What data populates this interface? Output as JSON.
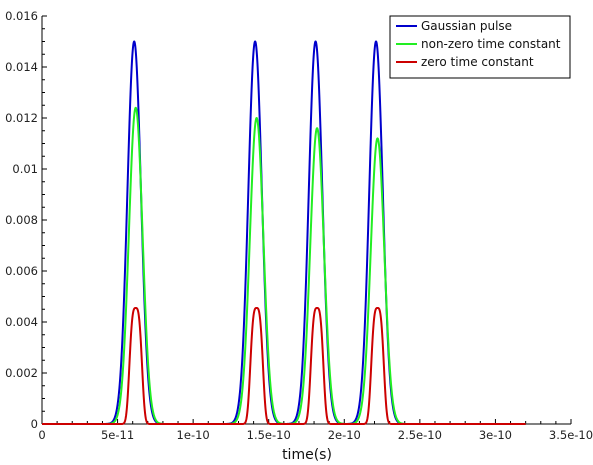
{
  "chart_data": {
    "type": "line",
    "xlabel": "time(s)",
    "ylabel": "",
    "xlim": [
      0,
      3.5e-10
    ],
    "ylim": [
      0,
      0.016
    ],
    "x_ticks": [
      0,
      5e-11,
      1e-10,
      1.5e-10,
      2e-10,
      2.5e-10,
      3e-10,
      3.5e-10
    ],
    "x_tick_labels": [
      "0",
      "5e-11",
      "1e-10",
      "1.5e-10",
      "2e-10",
      "2.5e-10",
      "3e-10",
      "3.5e-10"
    ],
    "y_ticks": [
      0,
      0.002,
      0.004,
      0.006,
      0.008,
      0.01,
      0.012,
      0.014,
      0.016
    ],
    "y_tick_labels": [
      "0",
      "0.002",
      "0.004",
      "0.006",
      "0.008",
      "0.01",
      "0.012",
      "0.014",
      "0.016"
    ],
    "legend_position": "top-right",
    "grid": false,
    "x_data_range": [
      0,
      3.2e-10
    ],
    "series": [
      {
        "name": "Gaussian pulse",
        "color": "#0000cc",
        "peaks": [
          {
            "center": 6.1e-11,
            "height": 0.015,
            "sigma": 4.5e-12
          },
          {
            "center": 1.41e-10,
            "height": 0.015,
            "sigma": 4.5e-12
          },
          {
            "center": 1.81e-10,
            "height": 0.015,
            "sigma": 4.5e-12
          },
          {
            "center": 2.21e-10,
            "height": 0.015,
            "sigma": 4.5e-12
          }
        ]
      },
      {
        "name": "non-zero time constant",
        "color": "#22ee22",
        "peaks": [
          {
            "center": 6.2e-11,
            "height": 0.0124,
            "sigma": 4.5e-12
          },
          {
            "center": 1.42e-10,
            "height": 0.012,
            "sigma": 4.5e-12
          },
          {
            "center": 1.82e-10,
            "height": 0.0116,
            "sigma": 4.5e-12
          },
          {
            "center": 2.22e-10,
            "height": 0.0112,
            "sigma": 4.5e-12
          }
        ]
      },
      {
        "name": "zero time constant",
        "color": "#cc0000",
        "peaks": [
          {
            "center": 6.2e-11,
            "height": 0.00455,
            "sigma": 3.5e-12,
            "shape": "flat"
          },
          {
            "center": 1.42e-10,
            "height": 0.00455,
            "sigma": 3.5e-12,
            "shape": "flat"
          },
          {
            "center": 1.82e-10,
            "height": 0.00455,
            "sigma": 3.5e-12,
            "shape": "flat"
          },
          {
            "center": 2.22e-10,
            "height": 0.00455,
            "sigma": 3.5e-12,
            "shape": "flat"
          }
        ]
      }
    ]
  }
}
